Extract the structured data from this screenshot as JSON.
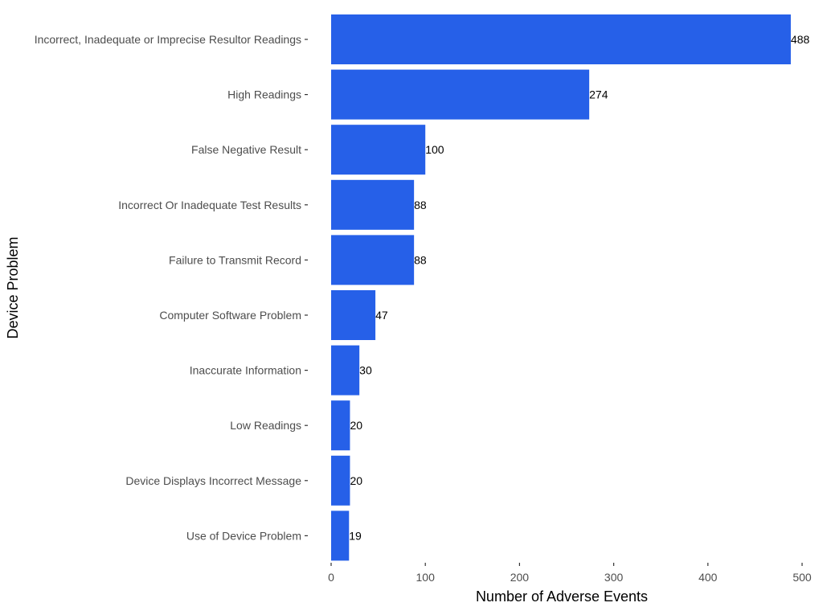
{
  "chart_data": {
    "type": "bar",
    "orientation": "horizontal",
    "categories": [
      "Incorrect, Inadequate or Imprecise Resultor Readings",
      "High Readings",
      "False Negative Result",
      "Incorrect Or Inadequate Test Results",
      "Failure to Transmit Record",
      "Computer Software Problem",
      "Inaccurate Information",
      "Low Readings",
      "Device Displays Incorrect Message",
      "Use of Device Problem"
    ],
    "values": [
      488,
      274,
      100,
      88,
      88,
      47,
      30,
      20,
      20,
      19
    ],
    "data_labels": [
      "488",
      "274",
      "100",
      "88",
      "88",
      "47",
      "30",
      "20",
      "20",
      "19"
    ],
    "xlabel": "Number of Adverse Events",
    "ylabel": "Device Problem",
    "xlim": [
      0,
      500
    ],
    "x_ticks": [
      0,
      100,
      200,
      300,
      400,
      500
    ],
    "x_tick_labels": [
      "0",
      "100",
      "200",
      "300",
      "400",
      "500"
    ],
    "grid": false,
    "bar_color": "#2660e8"
  }
}
